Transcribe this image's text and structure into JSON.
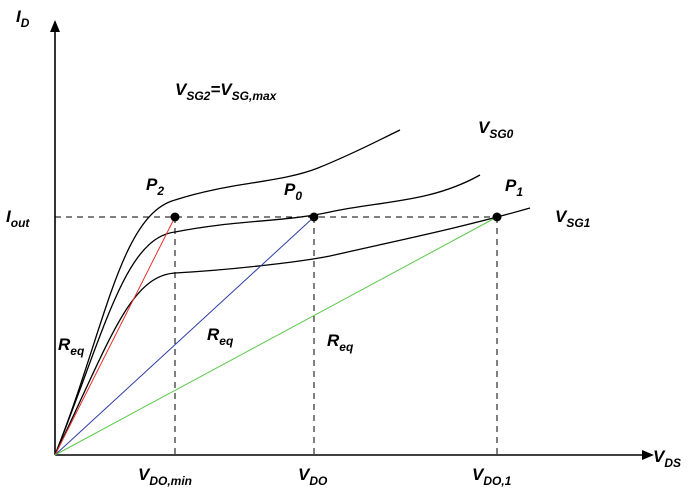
{
  "axes": {
    "y_label": {
      "main": "I",
      "sub": "D"
    },
    "x_label": {
      "main": "V",
      "sub": "DS"
    }
  },
  "levels": {
    "i_out": {
      "main": "I",
      "sub": "out"
    }
  },
  "curve_labels": {
    "sg2": {
      "main1": "V",
      "sub1": "SG2",
      "eq": "=V",
      "sub2": "SG,max"
    },
    "sg0": {
      "main": "V",
      "sub": "SG0"
    },
    "sg1": {
      "main": "V",
      "sub": "SG1"
    }
  },
  "points": {
    "p2": {
      "main": "P",
      "sub": "2"
    },
    "p0": {
      "main": "P",
      "sub": "0"
    },
    "p1": {
      "main": "P",
      "sub": "1"
    }
  },
  "ticks": {
    "vdo_min": {
      "main": "V",
      "sub": "DO,min"
    },
    "vdo": {
      "main": "V",
      "sub": "DO"
    },
    "vdo_1": {
      "main": "V",
      "sub": "DO,1"
    }
  },
  "resistances": {
    "red": {
      "main": "R",
      "sub": "eq",
      "color": "#e8302a"
    },
    "blue": {
      "main": "R",
      "sub": "eq",
      "color": "#2f3ea8"
    },
    "green": {
      "main": "R",
      "sub": "eq",
      "color": "#5cc84a"
    }
  }
}
